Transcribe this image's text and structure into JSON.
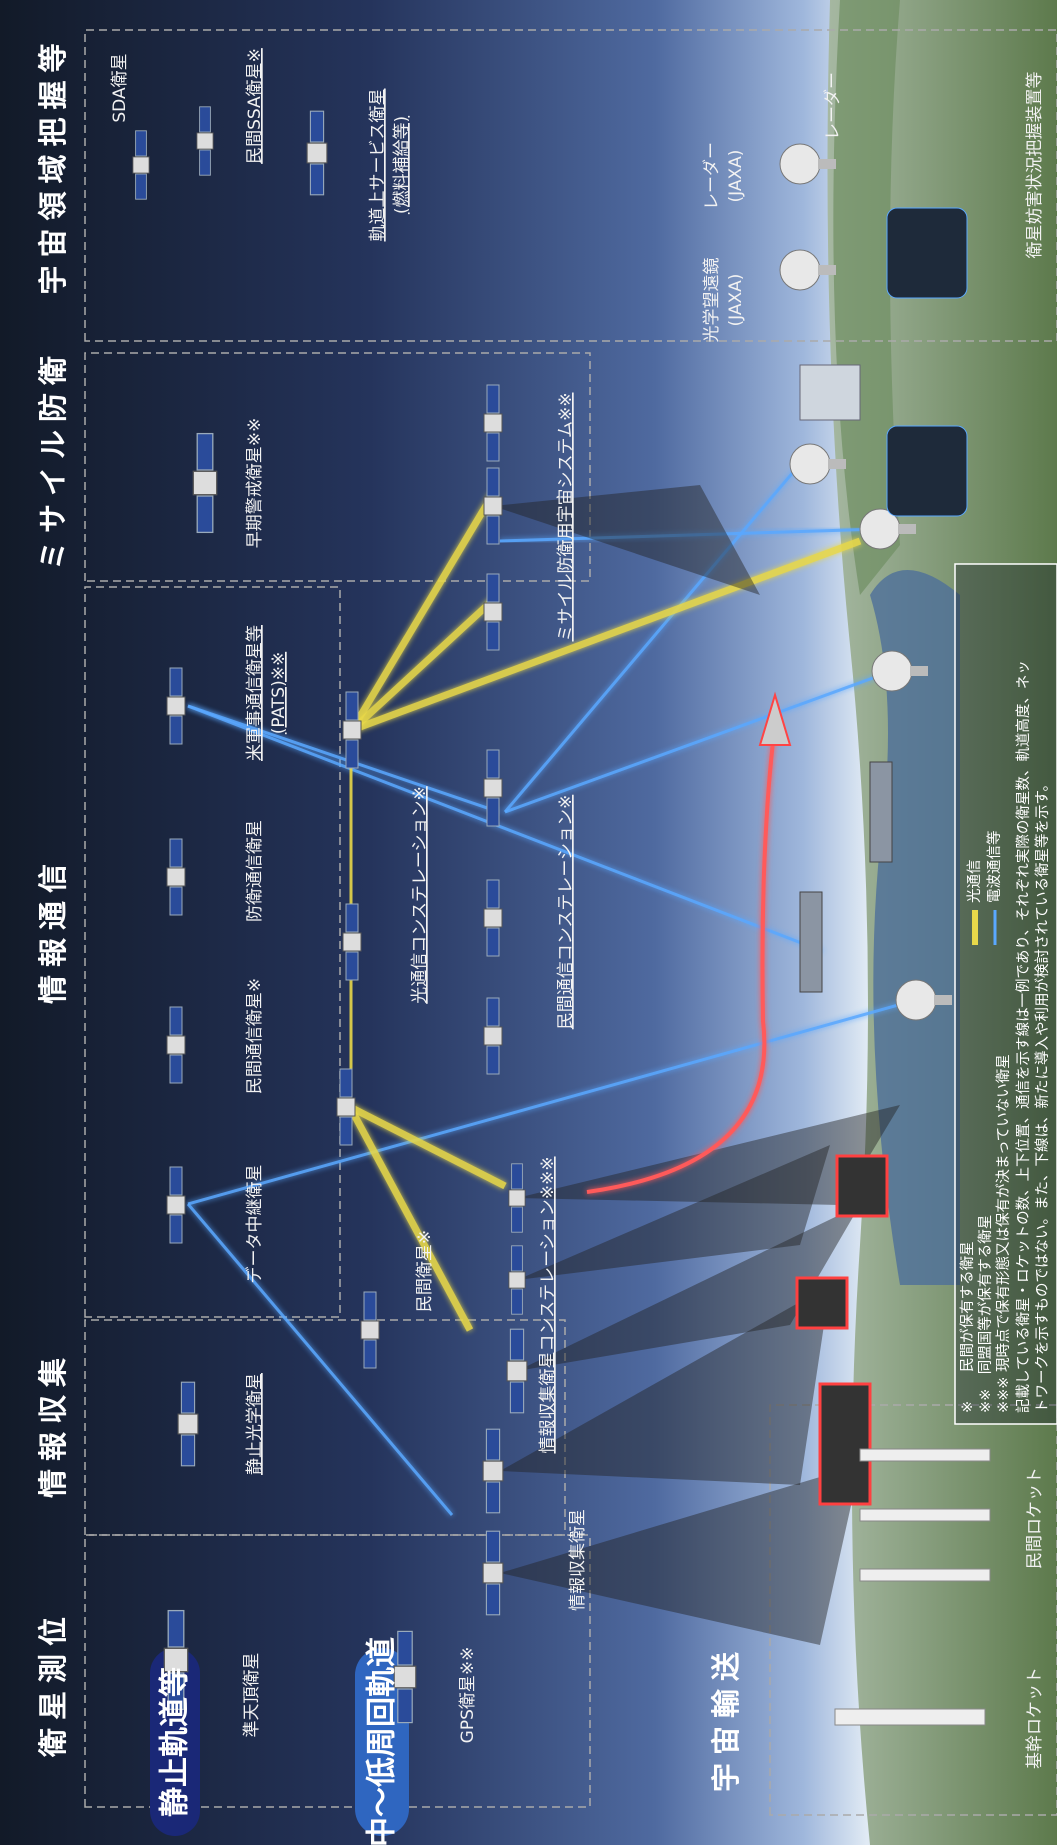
{
  "orbit_labels": [
    "静止軌道等",
    "中〜低周回軌道"
  ],
  "sections": [
    "衛星測位",
    "情報収集",
    "情報通信",
    "ミサイル防衛",
    "宇宙領域把握等",
    "宇宙輸送"
  ],
  "labels": [
    {
      "lines": [
        "準天頂衛星"
      ]
    },
    {
      "lines": [
        "GPS衛星※※"
      ]
    },
    {
      "lines": [
        "静止光学衛星"
      ],
      "underline": true
    },
    {
      "lines": [
        "情報収集衛星"
      ]
    },
    {
      "lines": [
        "民間衛星※"
      ]
    },
    {
      "lines": [
        "情報収集衛星コンステレーション※※※"
      ],
      "underline": true
    },
    {
      "lines": [
        "データ中継衛星"
      ]
    },
    {
      "lines": [
        "民間通信衛星※"
      ]
    },
    {
      "lines": [
        "防衛通信衛星"
      ]
    },
    {
      "lines": [
        "光通信コンステレーション※"
      ],
      "underline": true
    },
    {
      "lines": [
        "民間通信コンステレーション※"
      ],
      "underline": true
    },
    {
      "lines": [
        "米軍事通信衛星等",
        "(PATS)※※"
      ],
      "underline": true
    },
    {
      "lines": [
        "早期警戒衛星※※"
      ]
    },
    {
      "lines": [
        "ミサイル防衛用宇宙システム※※"
      ],
      "underline": true
    },
    {
      "lines": [
        "SDA衛星"
      ]
    },
    {
      "lines": [
        "民間SSA衛星※"
      ],
      "underline": true
    },
    {
      "lines": [
        "軌道上サービス衛星",
        "(燃料補給等)"
      ],
      "underline": true
    },
    {
      "lines": [
        "光学望遠鏡",
        "(JAXA)"
      ]
    },
    {
      "lines": [
        "レーダー",
        "(JAXA)"
      ]
    },
    {
      "lines": [
        "レーダー"
      ]
    },
    {
      "lines": [
        "衛星妨害状況把握装置等"
      ]
    },
    {
      "lines": [
        "基幹ロケット"
      ]
    },
    {
      "lines": [
        "民間ロケット"
      ]
    }
  ],
  "legend": [
    {
      "name": "光通信",
      "color": "#e8d84a"
    },
    {
      "name": "電波通信等",
      "color": "#5aa8ff"
    }
  ],
  "notes": [
    "※　　民間が保有する衛星",
    "※※　同盟国等が保有する衛星",
    "※※※ 現時点で保有形態又は保有が決まっていない衛星",
    "記載している衛星・ロケットの数、上下位置、通信を示す線は一例であり、それぞれ実際の衛星数、軌道高度、ネッ",
    "トワークを示すものではない。また、下線は、新たに導入や利用が検討されている衛星等を示す。"
  ]
}
